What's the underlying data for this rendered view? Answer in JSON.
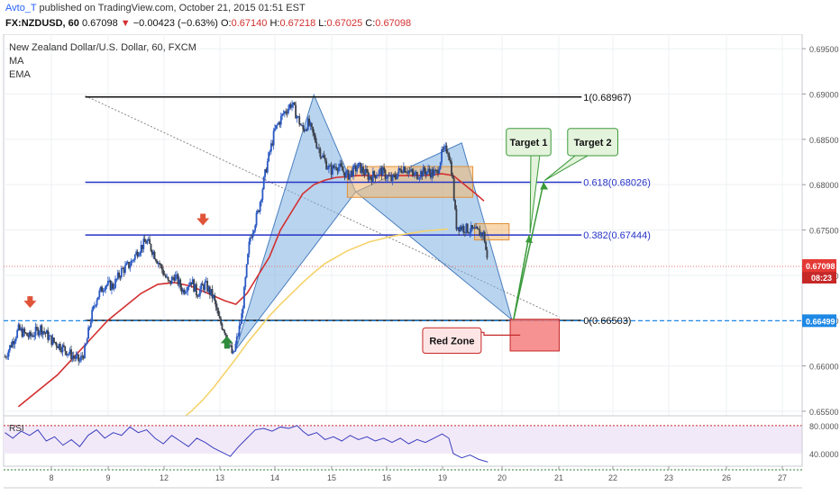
{
  "header": {
    "author": "Avto_T",
    "published": "published on TradingView.com, October 21, 2015 01:51 EST",
    "symbol": "FX:NZDUSD, 60",
    "last": "0.67098",
    "change_arrow": "▼",
    "change": "−0.00423 (−0.63%)",
    "o_label": "O:",
    "o_value": "0.67140",
    "h_label": "H:",
    "h_value": "0.67218",
    "l_label": "L:",
    "l_value": "0.67025",
    "c_label": "C:",
    "c_value": "0.67098"
  },
  "chart_data": {
    "type": "candlestick",
    "title": "New Zealand Dollar/U.S. Dollar, 60, FXCM",
    "indicators": [
      "MA",
      "EMA"
    ],
    "x_ticks": [
      "8",
      "9",
      "12",
      "13",
      "14",
      "15",
      "16",
      "19",
      "20",
      "21",
      "22",
      "23",
      "26",
      "27"
    ],
    "y_ticks": [
      "0.69500",
      "0.69000",
      "0.68500",
      "0.68000",
      "0.67500",
      "0.67000",
      "0.66500",
      "0.66000",
      "0.65500"
    ],
    "ylim": [
      0.6543,
      0.6966
    ],
    "close_path": [
      [
        0.6,
        0.661
      ],
      [
        3,
        0.664
      ],
      [
        5,
        0.6632
      ],
      [
        7,
        0.6642
      ],
      [
        9,
        0.6628
      ],
      [
        11,
        0.662
      ],
      [
        12.5,
        0.6612
      ],
      [
        14,
        0.6605
      ],
      [
        15,
        0.6618
      ],
      [
        16,
        0.6652
      ],
      [
        17,
        0.6675
      ],
      [
        18.5,
        0.669
      ],
      [
        20,
        0.6688
      ],
      [
        21.5,
        0.6705
      ],
      [
        23,
        0.6712
      ],
      [
        24.5,
        0.6728
      ],
      [
        26,
        0.6738
      ],
      [
        27,
        0.6728
      ],
      [
        28.5,
        0.671
      ],
      [
        30,
        0.669
      ],
      [
        31,
        0.67
      ],
      [
        32.5,
        0.6683
      ],
      [
        34,
        0.6695
      ],
      [
        35,
        0.668
      ],
      [
        36.5,
        0.669
      ],
      [
        38,
        0.6675
      ],
      [
        39,
        0.665
      ],
      [
        40,
        0.664
      ],
      [
        41.5,
        0.661
      ],
      [
        43,
        0.6652
      ],
      [
        44.5,
        0.674
      ],
      [
        46,
        0.677
      ],
      [
        47.5,
        0.682
      ],
      [
        49,
        0.686
      ],
      [
        50.5,
        0.6878
      ],
      [
        52,
        0.689
      ],
      [
        53,
        0.6875
      ],
      [
        54,
        0.686
      ],
      [
        55,
        0.6868
      ],
      [
        56.5,
        0.6845
      ],
      [
        58,
        0.6825
      ],
      [
        59,
        0.6815
      ],
      [
        60,
        0.6822
      ],
      [
        62,
        0.681
      ],
      [
        64,
        0.682
      ],
      [
        66,
        0.6808
      ],
      [
        68,
        0.6815
      ],
      [
        70,
        0.6805
      ],
      [
        72,
        0.682
      ],
      [
        74,
        0.681
      ],
      [
        76,
        0.6815
      ],
      [
        78,
        0.6812
      ],
      [
        79,
        0.6835
      ],
      [
        80,
        0.684
      ],
      [
        80.8,
        0.6812
      ],
      [
        81.5,
        0.6755
      ],
      [
        83,
        0.6752
      ],
      [
        85,
        0.6748
      ],
      [
        86.5,
        0.6745
      ],
      [
        87.2,
        0.671
      ]
    ],
    "ema_path": [
      [
        3,
        0.6555
      ],
      [
        7,
        0.6575
      ],
      [
        10,
        0.659
      ],
      [
        13,
        0.661
      ],
      [
        16,
        0.663
      ],
      [
        19,
        0.665
      ],
      [
        22,
        0.6665
      ],
      [
        25,
        0.668
      ],
      [
        28,
        0.669
      ],
      [
        31,
        0.6692
      ],
      [
        34,
        0.6688
      ],
      [
        37,
        0.668
      ],
      [
        40,
        0.6672
      ],
      [
        42,
        0.6668
      ],
      [
        44,
        0.668
      ],
      [
        46,
        0.67
      ],
      [
        48,
        0.672
      ],
      [
        50,
        0.675
      ],
      [
        52,
        0.677
      ],
      [
        54,
        0.679
      ],
      [
        56,
        0.68
      ],
      [
        58,
        0.6805
      ],
      [
        60,
        0.6808
      ],
      [
        64,
        0.681
      ],
      [
        68,
        0.681
      ],
      [
        72,
        0.681
      ],
      [
        76,
        0.681
      ],
      [
        79,
        0.6812
      ],
      [
        81,
        0.681
      ],
      [
        83,
        0.68
      ],
      [
        85,
        0.679
      ],
      [
        86.5,
        0.6782
      ]
    ],
    "ma_path": [
      [
        32,
        0.654
      ],
      [
        34,
        0.655
      ],
      [
        36,
        0.6562
      ],
      [
        38,
        0.6576
      ],
      [
        40,
        0.6592
      ],
      [
        42,
        0.6608
      ],
      [
        44,
        0.6625
      ],
      [
        46,
        0.664
      ],
      [
        48,
        0.6655
      ],
      [
        50,
        0.6668
      ],
      [
        52,
        0.668
      ],
      [
        54,
        0.6692
      ],
      [
        56,
        0.6703
      ],
      [
        58,
        0.6713
      ],
      [
        60,
        0.672
      ],
      [
        62,
        0.6727
      ],
      [
        64,
        0.6732
      ],
      [
        66,
        0.6737
      ],
      [
        68,
        0.674
      ],
      [
        70,
        0.6743
      ],
      [
        72,
        0.6745
      ],
      [
        74,
        0.6747
      ],
      [
        76,
        0.6749
      ],
      [
        78,
        0.675
      ],
      [
        80,
        0.6751
      ]
    ],
    "fib_levels": [
      {
        "ratio": "1",
        "value": 0.68967,
        "label": "1(0.68967)"
      },
      {
        "ratio": "0.618",
        "value": 0.68026,
        "label": "0.618(0.68026)"
      },
      {
        "ratio": "0.382",
        "value": 0.67444,
        "label": "0.382(0.67444)"
      },
      {
        "ratio": "0",
        "value": 0.66503,
        "label": "0(0.66503)"
      }
    ],
    "price_labels": [
      {
        "value": "0.67098",
        "extra": "08:23",
        "color": "#e53935"
      },
      {
        "value": "0.66499",
        "color": "#1e88e5"
      }
    ],
    "annotations": [
      "Target 1",
      "Target 2",
      "Red Zone"
    ],
    "rsi": {
      "label": "RSI",
      "ticks": [
        "80.0000",
        "40.0000"
      ],
      "upper": 80,
      "lower": 40,
      "ylim": [
        22,
        94
      ],
      "path": [
        [
          0.6,
          70
        ],
        [
          2,
          62
        ],
        [
          3.5,
          72
        ],
        [
          5,
          66
        ],
        [
          6.5,
          74
        ],
        [
          8,
          58
        ],
        [
          9.5,
          64
        ],
        [
          11,
          52
        ],
        [
          12.5,
          60
        ],
        [
          14,
          50
        ],
        [
          15.5,
          66
        ],
        [
          17,
          74
        ],
        [
          18.5,
          62
        ],
        [
          20,
          70
        ],
        [
          21.5,
          66
        ],
        [
          23,
          78
        ],
        [
          24.5,
          70
        ],
        [
          26,
          74
        ],
        [
          27.5,
          62
        ],
        [
          29,
          54
        ],
        [
          30.5,
          66
        ],
        [
          32,
          58
        ],
        [
          33.5,
          50
        ],
        [
          35,
          62
        ],
        [
          36.5,
          56
        ],
        [
          38,
          48
        ],
        [
          39.5,
          42
        ],
        [
          41,
          36
        ],
        [
          42.5,
          50
        ],
        [
          44,
          62
        ],
        [
          45.5,
          74
        ],
        [
          47,
          76
        ],
        [
          48.5,
          72
        ],
        [
          50,
          78
        ],
        [
          51.5,
          76
        ],
        [
          53,
          80
        ],
        [
          54,
          72
        ],
        [
          55,
          66
        ],
        [
          56.5,
          70
        ],
        [
          58,
          60
        ],
        [
          59.5,
          64
        ],
        [
          61,
          58
        ],
        [
          62.5,
          66
        ],
        [
          64,
          60
        ],
        [
          65.5,
          64
        ],
        [
          67,
          58
        ],
        [
          68.5,
          62
        ],
        [
          70,
          56
        ],
        [
          71.5,
          62
        ],
        [
          73,
          54
        ],
        [
          74.5,
          60
        ],
        [
          76,
          56
        ],
        [
          77.5,
          62
        ],
        [
          79,
          68
        ],
        [
          80.2,
          62
        ],
        [
          81,
          40
        ],
        [
          82.5,
          34
        ],
        [
          84,
          38
        ],
        [
          85.5,
          32
        ],
        [
          87.2,
          28
        ]
      ]
    }
  }
}
